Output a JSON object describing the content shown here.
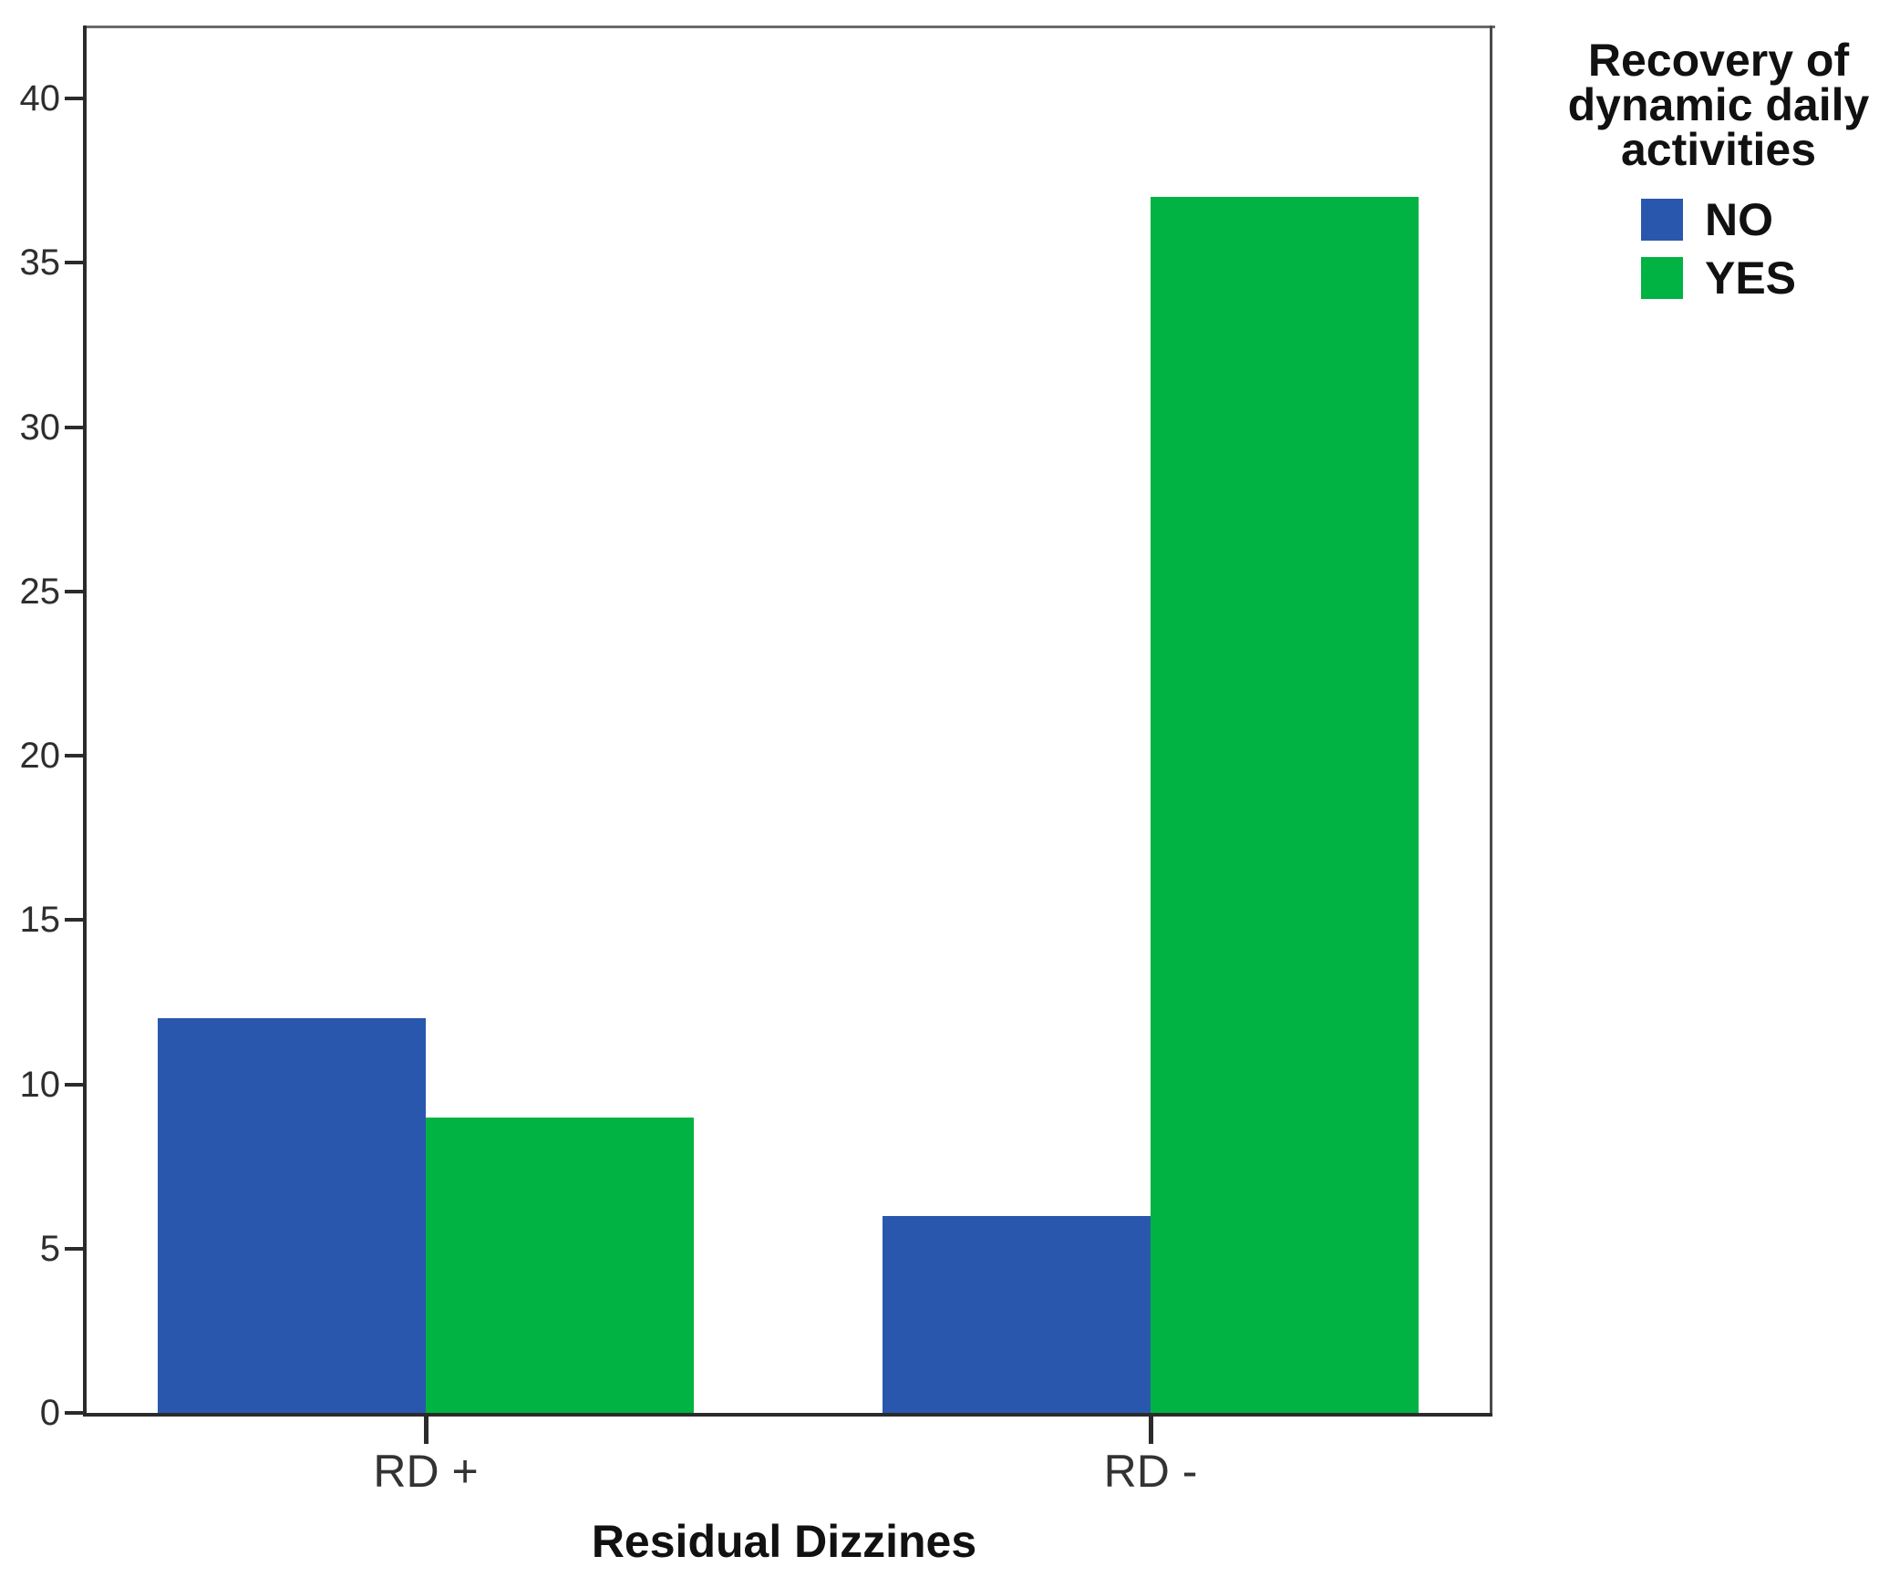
{
  "chart_data": {
    "type": "bar",
    "title": "",
    "categories": [
      "RD +",
      "RD -"
    ],
    "series": [
      {
        "name": "NO",
        "color": "#2a57ae",
        "values": [
          12,
          6
        ]
      },
      {
        "name": "YES",
        "color": "#00b342",
        "values": [
          9,
          37
        ]
      }
    ],
    "xlabel": "Residual Dizzines",
    "ylabel": "",
    "ylim": [
      0,
      42
    ],
    "yticks": [
      0,
      5,
      10,
      15,
      20,
      25,
      30,
      35,
      40
    ],
    "legend_title": "Recovery of dynamic daily activities",
    "legend_position": "outside-top-right",
    "legend_entries": [
      "NO",
      "YES"
    ],
    "grid": false
  }
}
